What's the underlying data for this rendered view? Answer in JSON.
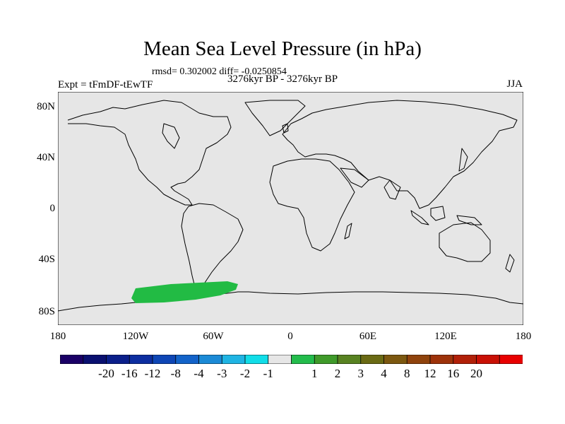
{
  "map": {
    "title": "Mean Sea Level Pressure (in hPa)",
    "stats": "rmsd= 0.302002 diff= -0.0250854",
    "experiment": "Expt = tFmDF-tEwTF",
    "period": "3276kyr BP - 3276kyr BP",
    "season": "JJA",
    "background_color": "#e6e6e6",
    "anomaly_color": "#22bb44",
    "lat_labels": [
      "80N",
      "40N",
      "0",
      "40S",
      "80S"
    ],
    "lon_labels": [
      "180",
      "120W",
      "60W",
      "0",
      "60E",
      "120E",
      "180"
    ]
  },
  "colorbar": {
    "colors": [
      "#1a0066",
      "#0a1070",
      "#0b1f8a",
      "#0d2ea0",
      "#0e46b5",
      "#1363c9",
      "#1b8ad6",
      "#1fb4e3",
      "#11dde8",
      "#e6e6e6",
      "#23bc4c",
      "#3f9a2a",
      "#588221",
      "#6a6a14",
      "#7c5810",
      "#8f430c",
      "#9d320a",
      "#b12008",
      "#c91005",
      "#e80000"
    ],
    "labels": [
      "-20",
      "-16",
      "-12",
      "-8",
      "-4",
      "-3",
      "-2",
      "-1",
      "1",
      "2",
      "3",
      "4",
      "8",
      "12",
      "16",
      "20"
    ]
  }
}
